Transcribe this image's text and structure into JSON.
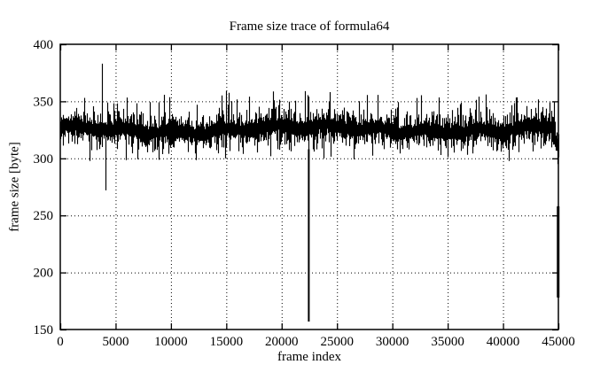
{
  "chart_data": {
    "type": "line",
    "title": "Frame size trace of formula64",
    "xlabel": "frame index",
    "ylabel": "frame size [byte]",
    "xlim": [
      0,
      45000
    ],
    "ylim": [
      150,
      400
    ],
    "xticks": [
      0,
      5000,
      10000,
      15000,
      20000,
      25000,
      30000,
      35000,
      40000,
      45000
    ],
    "yticks": [
      150,
      200,
      250,
      300,
      350,
      400
    ],
    "grid": {
      "style": "dotted",
      "color": "#000000"
    },
    "legend": "none",
    "background": "#ffffff",
    "axis_color": "#000000",
    "series": [
      {
        "name": "frame size",
        "color": "#000000",
        "style": "dense per-frame trace (vertical min/max band)",
        "n_frames": 45000,
        "baseline_mean_bytes": 325.5,
        "typical_band_bytes": [
          308,
          345
        ],
        "frequent_peak_bytes": 358,
        "frequent_trough_bytes": 295,
        "tail_sag": {
          "from_frame": 44300,
          "mean_at_end_bytes": 308
        },
        "anomalies": [
          {
            "frame": 3800,
            "peak": 383
          },
          {
            "frame": 4050,
            "trough": 272
          },
          {
            "frame": 22450,
            "trough": 157
          },
          {
            "frame": 44980,
            "drop_range": [
              178,
              258
            ]
          }
        ],
        "render_seed": 1337
      }
    ]
  }
}
